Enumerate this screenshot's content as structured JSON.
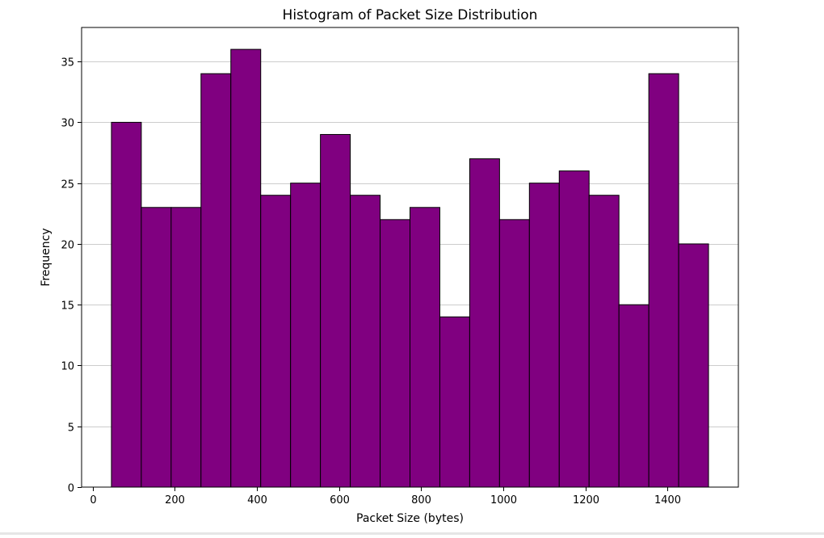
{
  "chart_data": {
    "type": "bar",
    "title": "Histogram of Packet Size Distribution",
    "xlabel": "Packet Size (bytes)",
    "ylabel": "Frequency",
    "bins": {
      "start": 46,
      "end": 1500,
      "edges": [
        46,
        118.7,
        191.4,
        264.1,
        336.8,
        409.5,
        482.2,
        554.9,
        627.6,
        700.3,
        773,
        845.7,
        918.4,
        991.1,
        1063.8,
        1136.5,
        1209.2,
        1281.9,
        1354.6,
        1427.3,
        1500
      ]
    },
    "values": [
      30,
      23,
      23,
      34,
      36,
      24,
      25,
      29,
      24,
      22,
      23,
      14,
      27,
      22,
      25,
      26,
      24,
      15,
      34,
      20
    ],
    "xlim": [
      -26.7,
      1572.7
    ],
    "ylim": [
      0,
      37.8
    ],
    "xticks": [
      0,
      200,
      400,
      600,
      800,
      1000,
      1200,
      1400
    ],
    "xtick_labels": [
      "0",
      "200",
      "400",
      "600",
      "800",
      "1000",
      "1200",
      "1400"
    ],
    "yticks": [
      0,
      5,
      10,
      15,
      20,
      25,
      30,
      35
    ],
    "ytick_labels": [
      "0",
      "5",
      "10",
      "15",
      "20",
      "25",
      "30",
      "35"
    ],
    "grid": "horizontal",
    "colors": {
      "bar_fill": "#800080",
      "bar_edge": "#000000",
      "grid": "#cccccc"
    }
  }
}
